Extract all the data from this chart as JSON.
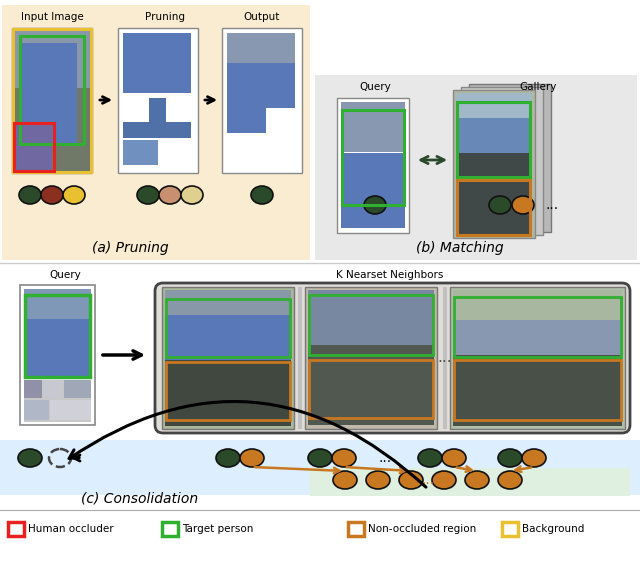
{
  "bg_color": "#ffffff",
  "orange_bg": "#faecd0",
  "light_gray_bg": "#e8e8e8",
  "light_blue_bg": "#ddeeff",
  "light_green_bg": "#e0f0e0",
  "dark_green": "#2a4a2a",
  "orange_circle": "#c87820",
  "brown_circle": "#8b3020",
  "yellow_circle": "#e8c030",
  "tan_circle": "#c89070",
  "cream_circle": "#e0d090",
  "red_box": "#e82020",
  "green_box": "#30b030",
  "orange_box": "#c87820",
  "yellow_box": "#e8c030",
  "section_a_label": "(a) Pruning",
  "section_b_label": "(b) Matching",
  "section_c_label": "(c) Consolidation",
  "col1_label": "Input Image",
  "col2_label": "Pruning",
  "col3_label": "Output",
  "col_b1_label": "Query",
  "col_b2_label": "Gallery",
  "col_c1_label": "Query",
  "col_c2_label": "K Nearset Neighbors",
  "legend_items": [
    {
      "label": "Human occluder",
      "color": "#e82020"
    },
    {
      "label": "Target person",
      "color": "#30b030"
    },
    {
      "label": "Non-occluded region",
      "color": "#c87820"
    },
    {
      "label": "Background",
      "color": "#e8c030"
    }
  ]
}
